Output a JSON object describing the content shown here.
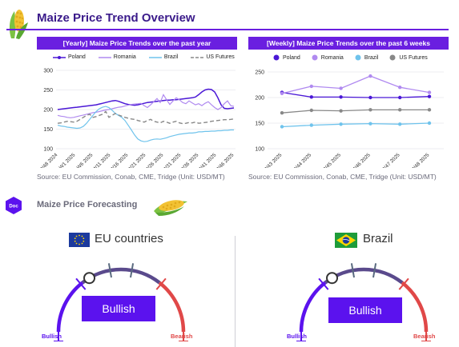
{
  "header": {
    "title": "Maize Price Trend Overview"
  },
  "section": {
    "title": "Maize Price Forecasting",
    "badge": "Doc"
  },
  "colors": {
    "accent": "#6a1fe0",
    "bullish": "#5b12ee",
    "bearish": "#e04848"
  },
  "chart_data": [
    {
      "type": "line",
      "title": "[Yearly] Maize Price Trends over the past year",
      "source": "Source: EU Commission, Conab, CME, Tridge (Unit: USD/MT)",
      "xlabel": "",
      "ylabel": "",
      "ylim": [
        100,
        300
      ],
      "yticks": [
        100,
        150,
        200,
        250,
        300
      ],
      "grid": true,
      "legend_position": "top",
      "x_tick_labels": [
        "W48 2024",
        "W1 2025",
        "W6 2025",
        "W11 2025",
        "W16 2025",
        "W21 2025",
        "W26 2025",
        "W31 2025",
        "W36 2025",
        "W41 2025",
        "W46 2025"
      ],
      "series": [
        {
          "name": "Poland",
          "color": "#4a17d6",
          "dash": "",
          "width": 1.5,
          "values": [
            200,
            201,
            202,
            203,
            204,
            205,
            206,
            207,
            208,
            209,
            210,
            211,
            212,
            214,
            216,
            218,
            220,
            222,
            223,
            221,
            218,
            215,
            213,
            212,
            211,
            212,
            214,
            216,
            218,
            219,
            220,
            221,
            222,
            223,
            224,
            224,
            225,
            225,
            226,
            227,
            228,
            229,
            230,
            232,
            238,
            245,
            250,
            252,
            251,
            245,
            230,
            212,
            203,
            202,
            203,
            204
          ]
        },
        {
          "name": "Romania",
          "color": "#b08af0",
          "dash": "",
          "width": 1.2,
          "values": [
            185,
            183,
            182,
            180,
            179,
            180,
            182,
            184,
            186,
            188,
            190,
            192,
            193,
            195,
            197,
            199,
            200,
            202,
            204,
            206,
            207,
            209,
            211,
            213,
            214,
            215,
            216,
            210,
            205,
            212,
            220,
            228,
            218,
            238,
            225,
            213,
            222,
            230,
            225,
            218,
            215,
            222,
            217,
            212,
            215,
            210,
            216,
            220,
            212,
            205,
            200,
            205,
            215,
            222,
            210,
            208
          ]
        },
        {
          "name": "Brazil",
          "color": "#6fc3ec",
          "dash": "",
          "width": 1.2,
          "values": [
            160,
            158,
            157,
            155,
            154,
            153,
            152,
            153,
            157,
            165,
            175,
            185,
            195,
            202,
            206,
            208,
            205,
            198,
            190,
            185,
            180,
            172,
            160,
            148,
            135,
            125,
            120,
            118,
            119,
            122,
            124,
            125,
            124,
            126,
            128,
            131,
            133,
            135,
            137,
            138,
            139,
            140,
            140,
            141,
            143,
            143,
            144,
            144,
            145,
            145,
            146,
            146,
            147,
            147,
            148,
            148
          ]
        },
        {
          "name": "US Futures",
          "color": "#888888",
          "dash": "5,3",
          "width": 1.4,
          "values": [
            165,
            166,
            168,
            170,
            169,
            168,
            170,
            175,
            180,
            185,
            188,
            180,
            182,
            185,
            188,
            195,
            180,
            185,
            190,
            186,
            183,
            180,
            178,
            176,
            175,
            172,
            170,
            168,
            172,
            175,
            170,
            168,
            166,
            170,
            168,
            165,
            168,
            170,
            166,
            164,
            165,
            167,
            166,
            168,
            165,
            166,
            167,
            168,
            170,
            171,
            172,
            173,
            174,
            174,
            175,
            176
          ]
        }
      ]
    },
    {
      "type": "line",
      "title": "[Weekly] Maize Price Trends over the past 6 weeks",
      "source": "Source: EU Commission, Conab, CME, Tridge (Unit: USD/MT)",
      "xlabel": "",
      "ylabel": "",
      "ylim": [
        100,
        250
      ],
      "yticks": [
        100,
        150,
        200,
        250
      ],
      "grid": true,
      "legend_position": "top",
      "categories": [
        "W43 2025",
        "W44 2025",
        "W45 2025",
        "W46 2025",
        "W47 2025",
        "W48 2025"
      ],
      "series": [
        {
          "name": "Poland",
          "color": "#4a17d6",
          "values": [
            210,
            201,
            201,
            200,
            200,
            202
          ]
        },
        {
          "name": "Romania",
          "color": "#b08af0",
          "values": [
            208,
            222,
            218,
            242,
            220,
            210
          ]
        },
        {
          "name": "Brazil",
          "color": "#6fc3ec",
          "values": [
            143,
            146,
            148,
            149,
            148,
            150
          ]
        },
        {
          "name": "US Futures",
          "color": "#888888",
          "values": [
            170,
            175,
            174,
            176,
            176,
            176
          ]
        }
      ]
    }
  ],
  "forecast": {
    "eu": {
      "label": "EU countries",
      "signal": "Bullish",
      "left_label": "Bullish",
      "right_label": "Bearish",
      "level": 0.22
    },
    "brazil": {
      "label": "Brazil",
      "signal": "Bullish",
      "left_label": "Bullish",
      "right_label": "Bearish",
      "level": 0.22
    }
  }
}
